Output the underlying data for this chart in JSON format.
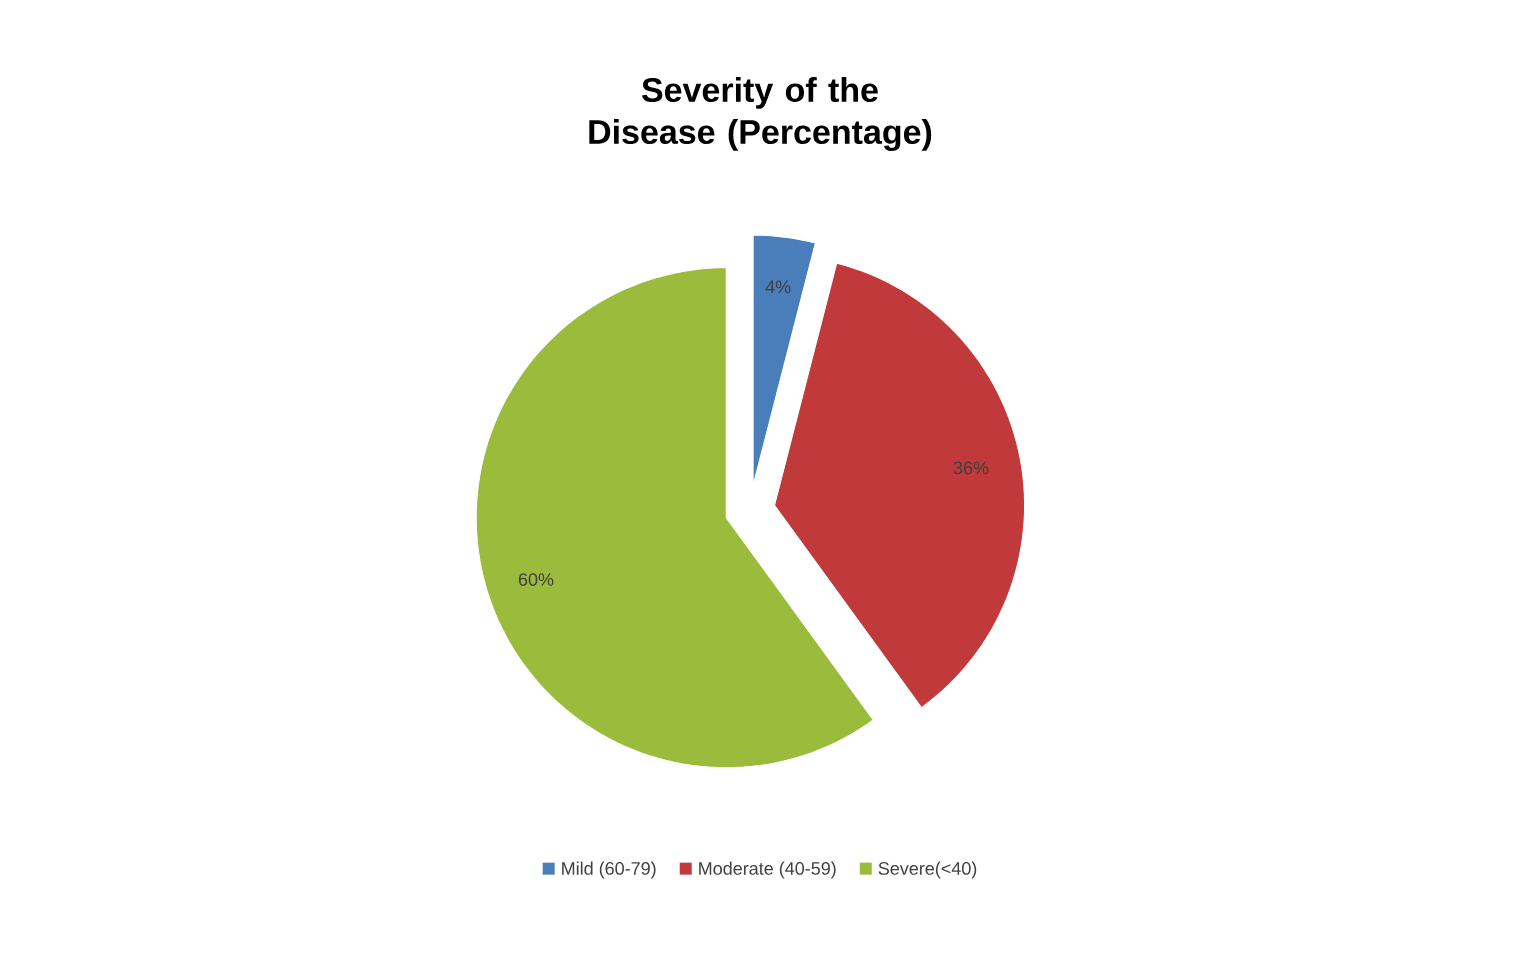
{
  "chart_data": {
    "type": "pie",
    "title": "Severity of the Disease (Percentage)",
    "categories": [
      "Mild (60-79)",
      "Moderate (40-59)",
      "Severe(<40)"
    ],
    "values": [
      4,
      36,
      60
    ],
    "colors": [
      "#4a7ebb",
      "#c0393b",
      "#9bbb3d"
    ],
    "value_labels": [
      "4%",
      "36%",
      "60%"
    ],
    "legend": "bottom"
  }
}
